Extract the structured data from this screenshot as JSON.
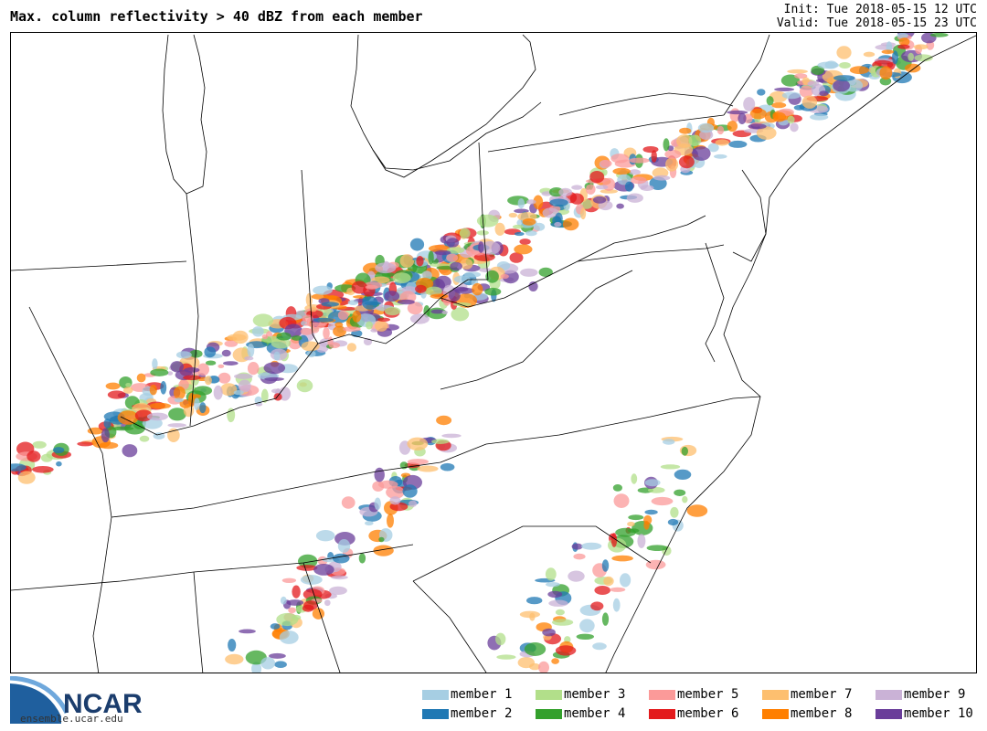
{
  "header": {
    "title": "Max. column reflectivity > 40 dBZ from each member",
    "init_label": "Init: Tue 2018-05-15 12 UTC",
    "valid_label": "Valid: Tue 2018-05-15 23 UTC"
  },
  "branding": {
    "logo_text": "NCAR",
    "url": "ensemble.ucar.edu",
    "logo_colors": {
      "swoosh_light": "#6fa8dc",
      "swoosh_dark": "#1f5f9e",
      "text": "#1b3d6d"
    }
  },
  "legend": {
    "items": [
      {
        "label": "member 1",
        "color": "#a6cee3"
      },
      {
        "label": "member 2",
        "color": "#1f78b4"
      },
      {
        "label": "member 3",
        "color": "#b2df8a"
      },
      {
        "label": "member 4",
        "color": "#33a02c"
      },
      {
        "label": "member 5",
        "color": "#fb9a99"
      },
      {
        "label": "member 6",
        "color": "#e31a1c"
      },
      {
        "label": "member 7",
        "color": "#fdbf6f"
      },
      {
        "label": "member 8",
        "color": "#ff7f00"
      },
      {
        "label": "member 9",
        "color": "#cab2d6"
      },
      {
        "label": "member 10",
        "color": "#6a3d9a"
      }
    ]
  },
  "map": {
    "basemap": "state-boundaries",
    "region": "Eastern United States",
    "layer": "ensemble storm cells"
  }
}
